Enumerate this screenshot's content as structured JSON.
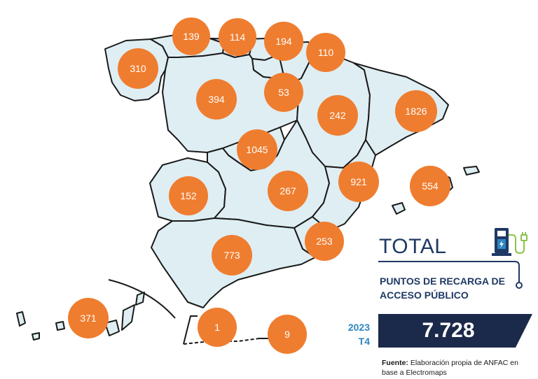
{
  "total": {
    "title": "TOTAL",
    "subtitle": "PUNTOS DE RECARGA DE ACCESO PÚBLICO",
    "year": "2023",
    "quarter": "T4",
    "value": "7.728",
    "icon": "ev-charger-icon"
  },
  "source": {
    "label": "Fuente:",
    "text": "Elaboración propia de ANFAC en base a Electromaps"
  },
  "colors": {
    "bubble": "#ef7d2f",
    "region_fill": "#deeef3",
    "title_navy": "#1f3964",
    "period_blue": "#2e86c1",
    "value_box": "#1b2a4a"
  },
  "regions": [
    {
      "id": "cantabria",
      "value": "139"
    },
    {
      "id": "pais-vasco",
      "value": "114"
    },
    {
      "id": "navarra",
      "value": "194"
    },
    {
      "id": "aragon-norte",
      "value": "110"
    },
    {
      "id": "galicia",
      "value": "310"
    },
    {
      "id": "castilla-y-leon",
      "value": "394"
    },
    {
      "id": "la-rioja",
      "value": "53"
    },
    {
      "id": "aragon",
      "value": "242"
    },
    {
      "id": "cataluna",
      "value": "1826"
    },
    {
      "id": "madrid",
      "value": "1045"
    },
    {
      "id": "extremadura",
      "value": "152"
    },
    {
      "id": "castilla-la-mancha",
      "value": "267"
    },
    {
      "id": "comunidad-valenciana",
      "value": "921"
    },
    {
      "id": "baleares",
      "value": "554"
    },
    {
      "id": "murcia",
      "value": "253"
    },
    {
      "id": "andalucia",
      "value": "773"
    },
    {
      "id": "canarias",
      "value": "371"
    },
    {
      "id": "ceuta",
      "value": "1"
    },
    {
      "id": "melilla",
      "value": "9"
    }
  ]
}
